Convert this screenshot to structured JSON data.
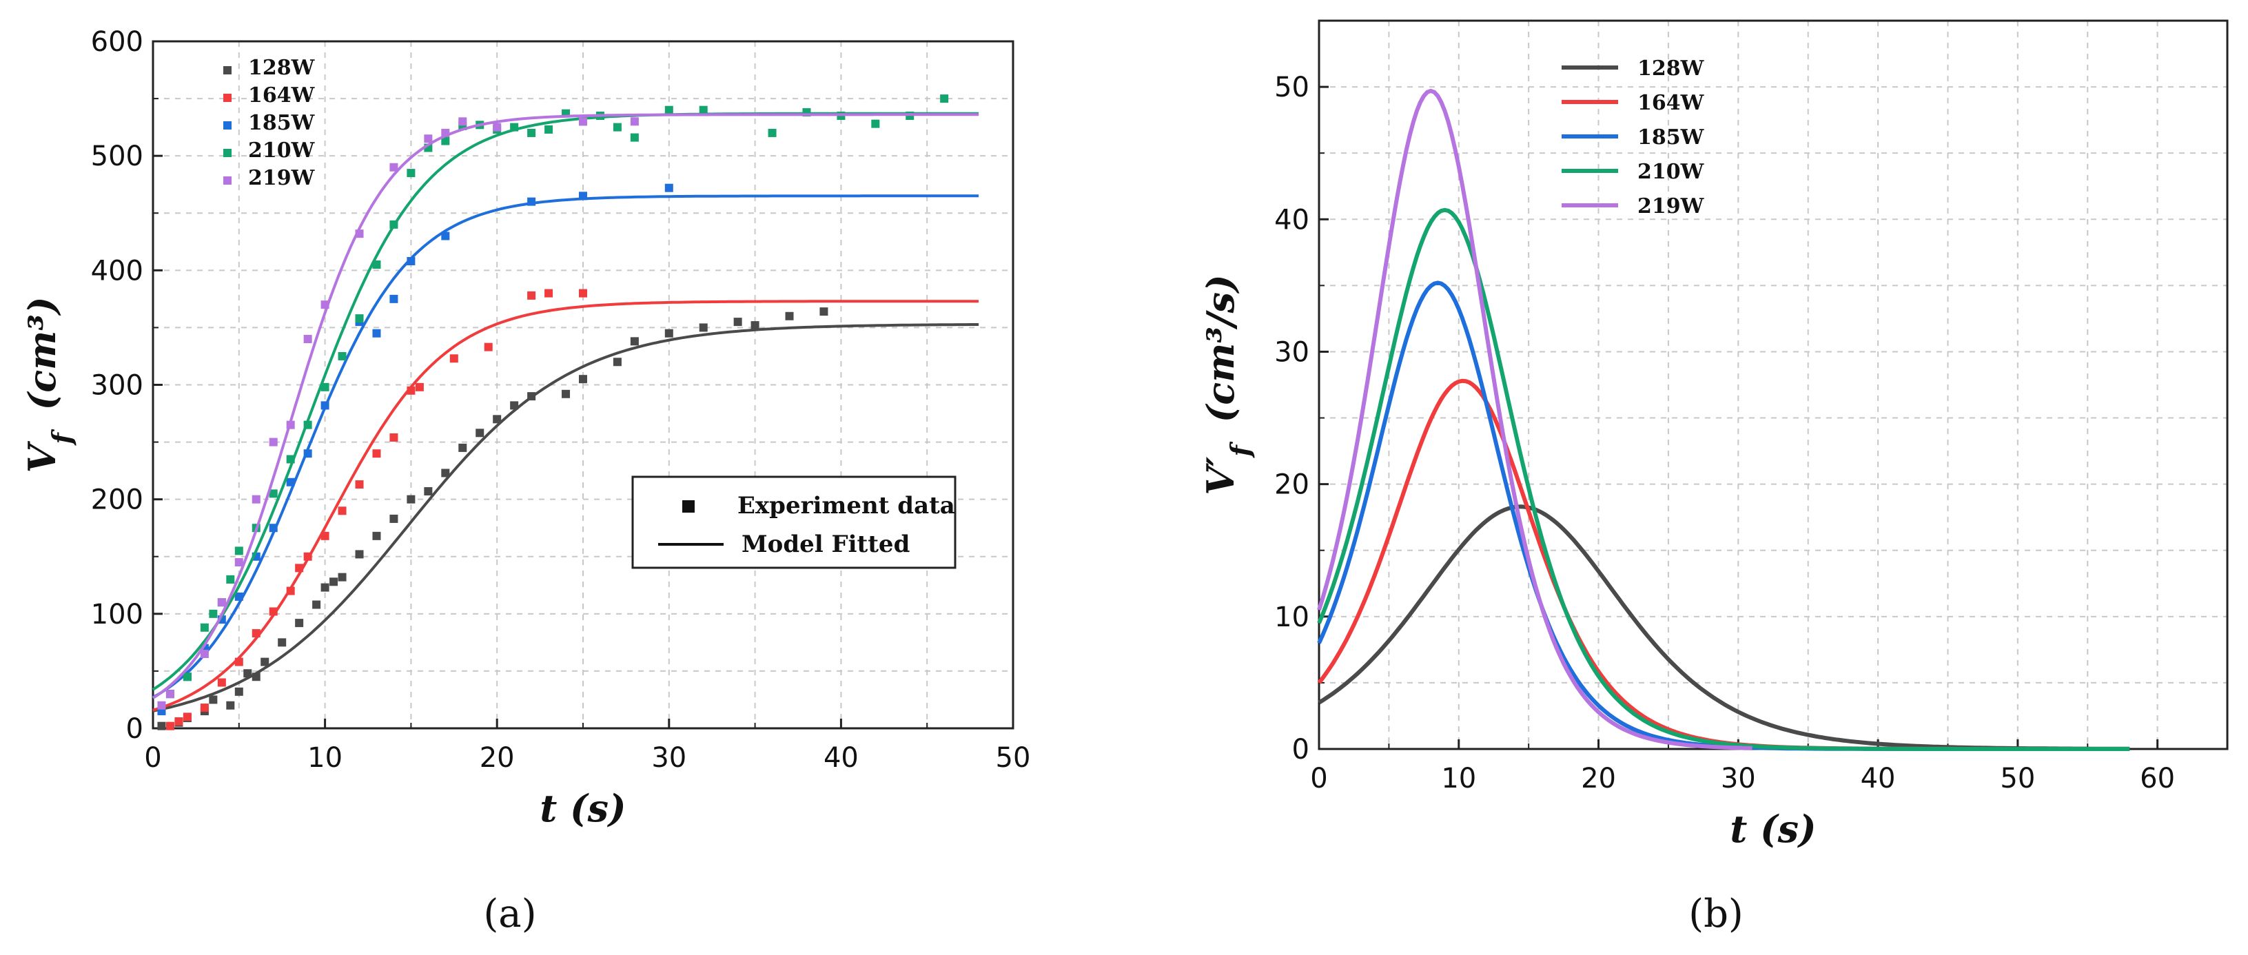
{
  "colors": {
    "128W": "#4a4a4a",
    "164W": "#f03c3c",
    "185W": "#1e6fdc",
    "210W": "#14a56e",
    "219W": "#b574e0"
  },
  "chart_data": [
    {
      "panel": "a",
      "type": "scatter",
      "xlabel": "t",
      "xunit": "(s)",
      "ylabel": "V",
      "ylabel_sub": "f",
      "yunit": "(cm³)",
      "xlim": [
        0,
        50
      ],
      "ylim": [
        0,
        600
      ],
      "xticks": [
        0,
        10,
        20,
        30,
        40,
        50
      ],
      "yticks": [
        0,
        100,
        200,
        300,
        400,
        500,
        600
      ],
      "grid": true,
      "legend": {
        "position": "top-left",
        "entries": [
          "128W",
          "164W",
          "185W",
          "210W",
          "219W"
        ]
      },
      "box_legend": {
        "position": "lower-right",
        "experiment_label": "Experiment data",
        "model_label": "Model Fitted"
      },
      "series": [
        {
          "name": "128W",
          "points": [
            [
              0.5,
              2
            ],
            [
              1.5,
              5
            ],
            [
              2,
              9
            ],
            [
              3,
              15
            ],
            [
              3.5,
              25
            ],
            [
              4.5,
              20
            ],
            [
              5,
              32
            ],
            [
              5.5,
              48
            ],
            [
              6,
              45
            ],
            [
              6.5,
              58
            ],
            [
              7.5,
              75
            ],
            [
              8.5,
              92
            ],
            [
              9.5,
              108
            ],
            [
              10,
              123
            ],
            [
              10.5,
              128
            ],
            [
              11,
              132
            ],
            [
              12,
              152
            ],
            [
              13,
              168
            ],
            [
              14,
              183
            ],
            [
              15,
              200
            ],
            [
              16,
              207
            ],
            [
              17,
              223
            ],
            [
              18,
              245
            ],
            [
              19,
              258
            ],
            [
              20,
              270
            ],
            [
              21,
              282
            ],
            [
              22,
              290
            ],
            [
              24,
              292
            ],
            [
              25,
              305
            ],
            [
              27,
              320
            ],
            [
              28,
              338
            ],
            [
              30,
              345
            ],
            [
              32,
              350
            ],
            [
              34,
              355
            ],
            [
              35,
              352
            ],
            [
              37,
              360
            ],
            [
              39,
              364
            ]
          ],
          "fit": {
            "L": 353,
            "k": 0.21,
            "t0": 14.8
          }
        },
        {
          "name": "164W",
          "points": [
            [
              1,
              2
            ],
            [
              1.5,
              6
            ],
            [
              2,
              10
            ],
            [
              3,
              18
            ],
            [
              4,
              40
            ],
            [
              5,
              58
            ],
            [
              6,
              83
            ],
            [
              7,
              102
            ],
            [
              8,
              120
            ],
            [
              8.5,
              140
            ],
            [
              9,
              150
            ],
            [
              10,
              168
            ],
            [
              11,
              190
            ],
            [
              12,
              213
            ],
            [
              13,
              240
            ],
            [
              14,
              254
            ],
            [
              15,
              295
            ],
            [
              15.5,
              298
            ],
            [
              17.5,
              323
            ],
            [
              19.5,
              333
            ],
            [
              22,
              378
            ],
            [
              23,
              380
            ],
            [
              25,
              380
            ]
          ],
          "fit": {
            "L": 373,
            "k": 0.3,
            "t0": 10.4
          }
        },
        {
          "name": "185W",
          "points": [
            [
              0.5,
              15
            ],
            [
              1,
              30
            ],
            [
              2,
              45
            ],
            [
              3,
              70
            ],
            [
              4,
              95
            ],
            [
              5,
              115
            ],
            [
              6,
              150
            ],
            [
              7,
              175
            ],
            [
              8,
              215
            ],
            [
              9,
              240
            ],
            [
              10,
              282
            ],
            [
              12,
              355
            ],
            [
              13,
              345
            ],
            [
              14,
              375
            ],
            [
              15,
              408
            ],
            [
              17,
              430
            ],
            [
              22,
              460
            ],
            [
              25,
              465
            ],
            [
              30,
              472
            ]
          ],
          "fit": {
            "L": 465,
            "k": 0.32,
            "t0": 8.7
          }
        },
        {
          "name": "210W",
          "points": [
            [
              1,
              30
            ],
            [
              2,
              45
            ],
            [
              3,
              88
            ],
            [
              3.5,
              100
            ],
            [
              4,
              110
            ],
            [
              4.5,
              130
            ],
            [
              5,
              155
            ],
            [
              6,
              175
            ],
            [
              7,
              205
            ],
            [
              8,
              235
            ],
            [
              9,
              265
            ],
            [
              10,
              298
            ],
            [
              11,
              325
            ],
            [
              12,
              358
            ],
            [
              13,
              405
            ],
            [
              14,
              440
            ],
            [
              15,
              485
            ],
            [
              16,
              507
            ],
            [
              17,
              513
            ],
            [
              18,
              526
            ],
            [
              19,
              527
            ],
            [
              20,
              523
            ],
            [
              21,
              525
            ],
            [
              22,
              520
            ],
            [
              23,
              523
            ],
            [
              24,
              537
            ],
            [
              25,
              530
            ],
            [
              26,
              535
            ],
            [
              27,
              525
            ],
            [
              28,
              516
            ],
            [
              30,
              540
            ],
            [
              32,
              540
            ],
            [
              36,
              520
            ],
            [
              38,
              538
            ],
            [
              40,
              535
            ],
            [
              42,
              528
            ],
            [
              44,
              535
            ],
            [
              46,
              550
            ]
          ],
          "fit": {
            "L": 537,
            "k": 0.3,
            "t0": 9.0
          }
        },
        {
          "name": "219W",
          "points": [
            [
              0.5,
              20
            ],
            [
              1,
              30
            ],
            [
              3,
              65
            ],
            [
              4,
              110
            ],
            [
              5,
              145
            ],
            [
              6,
              200
            ],
            [
              7,
              250
            ],
            [
              8,
              265
            ],
            [
              9,
              340
            ],
            [
              10,
              370
            ],
            [
              12,
              432
            ],
            [
              14,
              490
            ],
            [
              16,
              515
            ],
            [
              17,
              520
            ],
            [
              18,
              530
            ],
            [
              20,
              525
            ],
            [
              25,
              530
            ],
            [
              28,
              530
            ]
          ],
          "fit": {
            "L": 536,
            "k": 0.37,
            "t0": 8.0
          }
        }
      ]
    },
    {
      "panel": "b",
      "type": "line",
      "xlabel": "t",
      "xunit": "(s)",
      "ylabel": "V′",
      "ylabel_sub": "f",
      "yunit": "(cm³/s)",
      "xlim": [
        0,
        65
      ],
      "ylim": [
        0,
        55
      ],
      "xticks": [
        0,
        10,
        20,
        30,
        40,
        50,
        60
      ],
      "yticks": [
        0,
        10,
        20,
        30,
        40,
        50
      ],
      "grid": true,
      "legend": {
        "position": "top-left",
        "entries": [
          "128W",
          "164W",
          "185W",
          "210W",
          "219W"
        ]
      },
      "series": [
        {
          "name": "128W",
          "peak_t": 14.4,
          "peak_v": 18.3,
          "value_at_0": 3.5,
          "t_end": 58
        },
        {
          "name": "164W",
          "peak_t": 10.3,
          "peak_v": 27.8,
          "value_at_0": 5.0,
          "t_end": 58
        },
        {
          "name": "185W",
          "peak_t": 8.5,
          "peak_v": 35.2,
          "value_at_0": 8.0,
          "t_end": 58
        },
        {
          "name": "210W",
          "peak_t": 9.0,
          "peak_v": 40.7,
          "value_at_0": 9.5,
          "t_end": 58
        },
        {
          "name": "219W",
          "peak_t": 8.0,
          "peak_v": 49.7,
          "value_at_0": 10.5,
          "t_end": 31
        }
      ]
    }
  ],
  "panels": {
    "a": "(a)",
    "b": "(b)"
  }
}
